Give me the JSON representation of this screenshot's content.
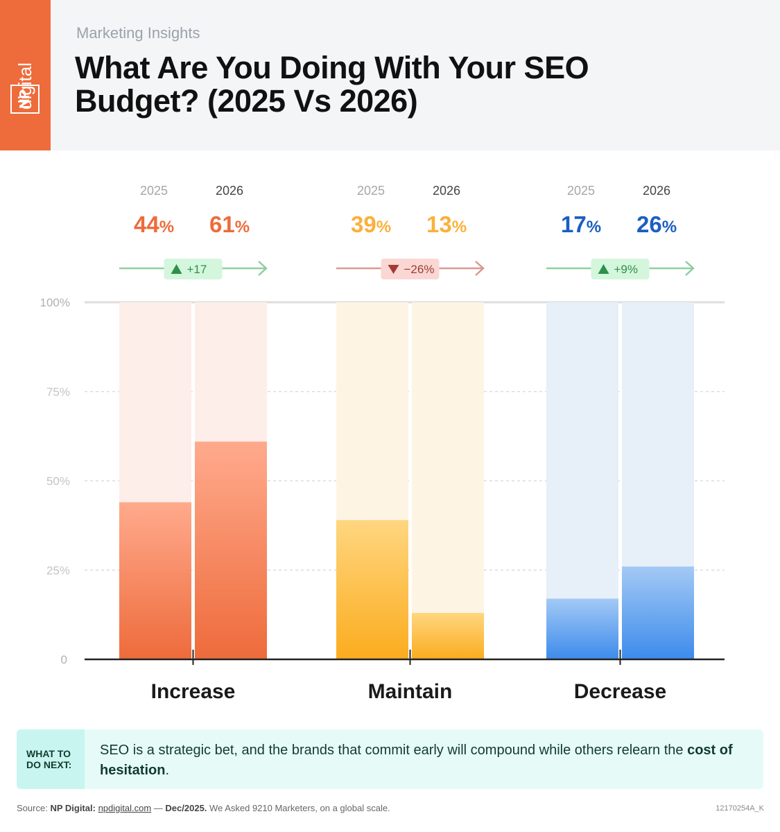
{
  "header": {
    "kicker": "Marketing Insights",
    "title": "What Are You Doing With Your SEO Budget? (2025 Vs 2026)",
    "brand_top": "digital",
    "brand_box": "NP"
  },
  "colors": {
    "increase": "#ee6b3b",
    "maintain": "#fbb03b",
    "decrease": "#1a5fbf",
    "up": "#3aa35c",
    "down": "#b23b3b"
  },
  "chart_data": {
    "type": "bar",
    "title": "What Are You Doing With Your SEO Budget? (2025 Vs 2026)",
    "categories": [
      "Increase",
      "Maintain",
      "Decrease"
    ],
    "series": [
      {
        "name": "2025",
        "values": [
          44,
          39,
          17
        ]
      },
      {
        "name": "2026",
        "values": [
          61,
          13,
          26
        ]
      }
    ],
    "changes": [
      "+17",
      "−26%",
      "+9%"
    ],
    "change_direction": [
      "up",
      "down",
      "up"
    ],
    "yticks": [
      "0",
      "25%",
      "50%",
      "75%",
      "100%"
    ],
    "ylim": [
      0,
      100
    ],
    "grid": true
  },
  "next_step": {
    "label": "WHAT TO DO NEXT:",
    "text": "SEO is a strategic bet, and the brands that commit early will compound while others relearn the ",
    "emphasis": "cost of hesitation",
    "end": "."
  },
  "footer": {
    "source_label": "Source:",
    "source_name": "NP Digital:",
    "source_link": "npdigital.com",
    "dash": "—",
    "date": "Dec/2025.",
    "note": "We Asked 9210 Marketers, on a global scale.",
    "ref": "12170254A_K"
  }
}
